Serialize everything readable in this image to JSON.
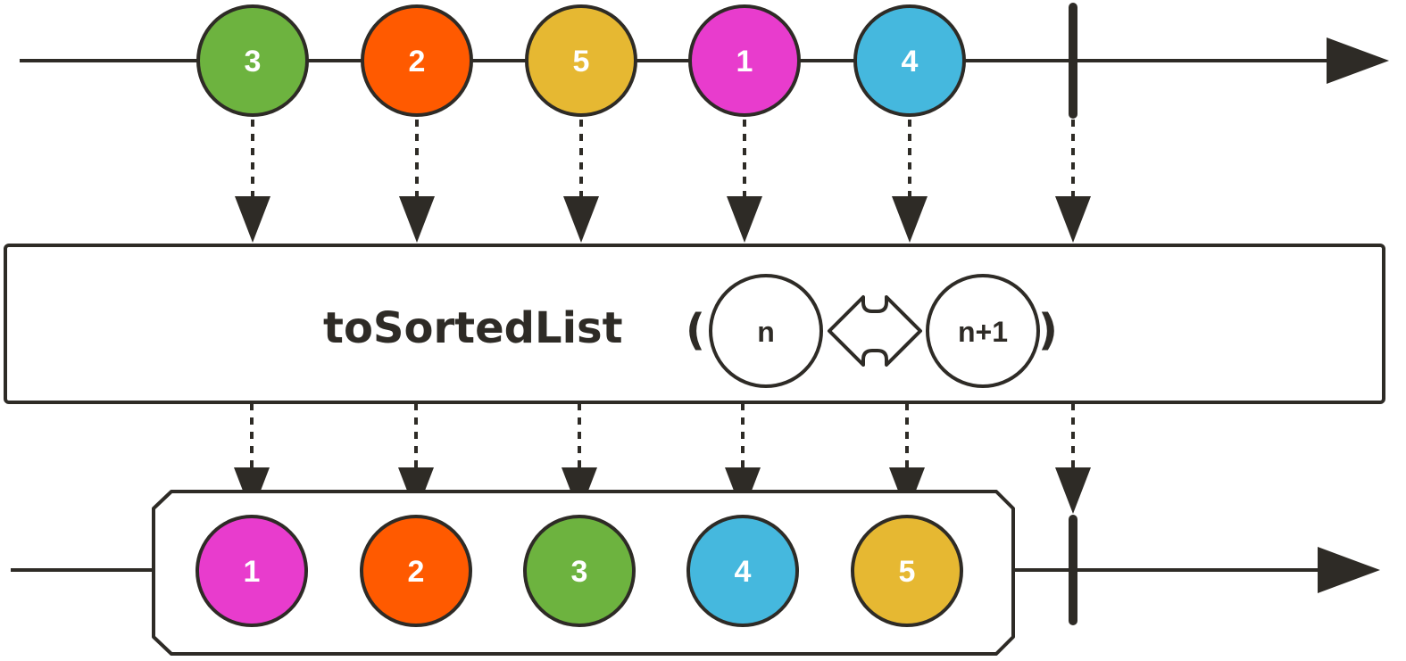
{
  "operator": {
    "name": "toSortedList",
    "open_paren": "(",
    "close_paren": ")",
    "param_left": "n",
    "param_right": "n+1"
  },
  "input_marbles": [
    {
      "label": "3",
      "color": "#6db33f"
    },
    {
      "label": "2",
      "color": "#ff5a00"
    },
    {
      "label": "5",
      "color": "#e6b832"
    },
    {
      "label": "1",
      "color": "#e83ccd"
    },
    {
      "label": "4",
      "color": "#45b8de"
    }
  ],
  "output_marbles": [
    {
      "label": "1",
      "color": "#e83ccd"
    },
    {
      "label": "2",
      "color": "#ff5a00"
    },
    {
      "label": "3",
      "color": "#6db33f"
    },
    {
      "label": "4",
      "color": "#45b8de"
    },
    {
      "label": "5",
      "color": "#e6b832"
    }
  ],
  "colors": {
    "stroke": "#2e2b26",
    "background": "#ffffff"
  }
}
